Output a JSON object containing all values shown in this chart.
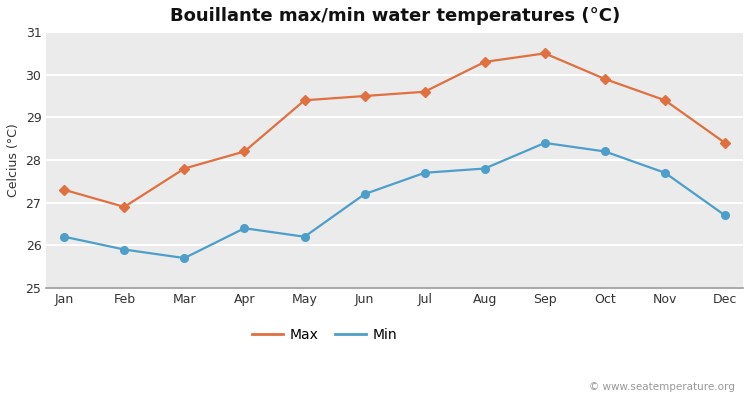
{
  "months": [
    "Jan",
    "Feb",
    "Mar",
    "Apr",
    "May",
    "Jun",
    "Jul",
    "Aug",
    "Sep",
    "Oct",
    "Nov",
    "Dec"
  ],
  "max_temps": [
    27.3,
    26.9,
    27.8,
    28.2,
    29.4,
    29.5,
    29.6,
    30.3,
    30.5,
    29.9,
    29.4,
    28.4
  ],
  "min_temps": [
    26.2,
    25.9,
    25.7,
    26.4,
    26.2,
    27.2,
    27.7,
    27.8,
    28.4,
    28.2,
    27.7,
    26.7
  ],
  "title": "Bouillante max/min water temperatures (°C)",
  "ylabel": "Celcius (°C)",
  "ylim": [
    25,
    31
  ],
  "yticks": [
    25,
    26,
    27,
    28,
    29,
    30,
    31
  ],
  "max_color": "#e07040",
  "min_color": "#4d9ec9",
  "outer_bg": "#ffffff",
  "plot_bg": "#ebebeb",
  "grid_color": "#ffffff",
  "watermark": "© www.seatemperature.org",
  "legend_max": "Max",
  "legend_min": "Min",
  "title_fontsize": 13,
  "axis_fontsize": 9,
  "tick_fontsize": 9,
  "watermark_fontsize": 7.5
}
